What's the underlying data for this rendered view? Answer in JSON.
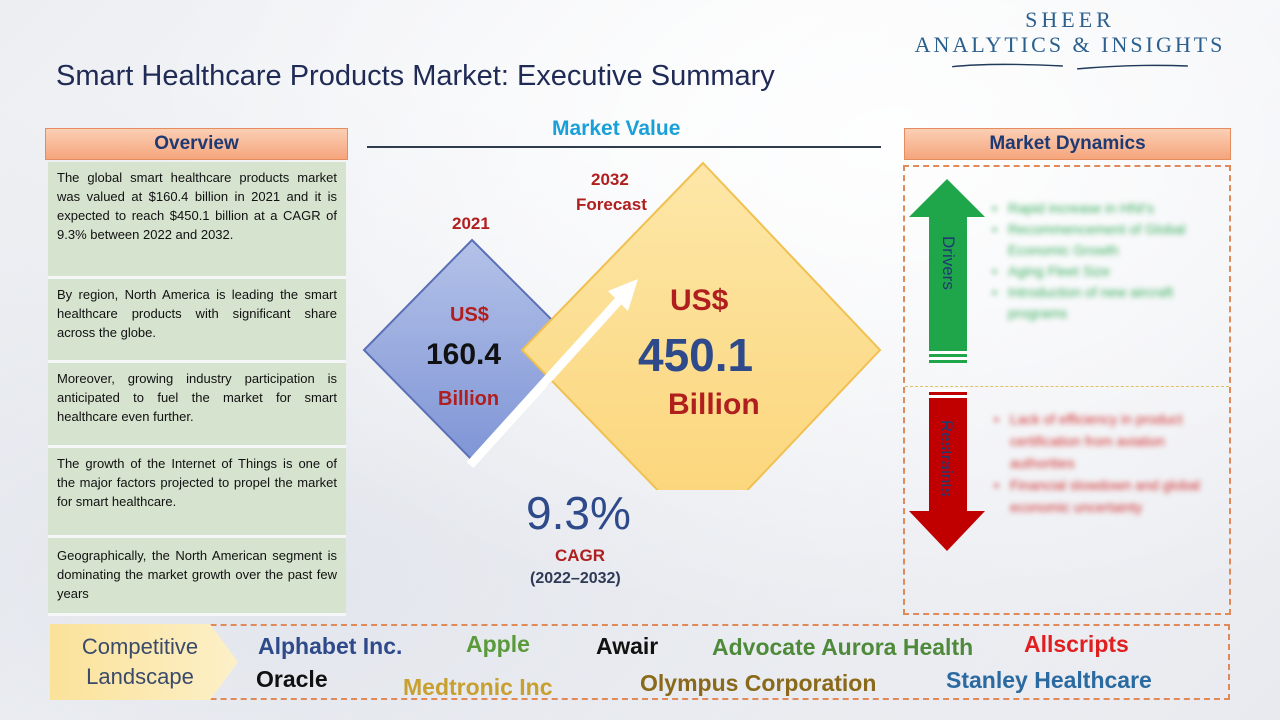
{
  "header": {
    "title": "Smart Healthcare Products Market: Executive Summary",
    "logo_line1": "SHEER",
    "logo_line2": "ANALYTICS & INSIGHTS"
  },
  "overview": {
    "heading": "Overview",
    "items": [
      "The global smart healthcare products market was valued at $160.4 billion in 2021 and it is expected to reach $450.1 billion at a CAGR of 9.3% between 2022 and 2032.",
      "By region, North America is leading the smart healthcare products with significant share across the globe.",
      "Moreover, growing industry participation is anticipated to fuel the market for smart healthcare even further.",
      "The growth of the Internet of Things is one of the major factors projected to propel the market for smart healthcare.",
      "Geographically, the North American segment is dominating the market growth over the past few years"
    ]
  },
  "market_value": {
    "heading": "Market Value",
    "base": {
      "year": "2021",
      "currency": "US$",
      "value": "160.4",
      "unit": "Billion"
    },
    "forecast": {
      "year": "2032",
      "year_label": "Forecast",
      "currency": "US$",
      "value": "450.1",
      "unit": "Billion"
    },
    "cagr": {
      "value": "9.3%",
      "label": "CAGR",
      "period": "(2022–2032)"
    }
  },
  "dynamics": {
    "heading": "Market Dynamics",
    "drivers_label": "Drivers",
    "restraints_label": "Restraints",
    "drivers": [
      "Rapid increase in HNI's",
      "Recommencement of Global Economic Growth",
      "Aging Fleet Size",
      "Introduction of new aircraft programs"
    ],
    "restraints": [
      "Lack of efficiency in product certification from aviation authorities",
      "Financial slowdown and global economic uncertainty"
    ]
  },
  "competitive": {
    "label_line1": "Competitive",
    "label_line2": "Landscape",
    "companies": [
      {
        "name": "Alphabet Inc.",
        "color": "#2e4a8a"
      },
      {
        "name": "Apple",
        "color": "#5a9a3a"
      },
      {
        "name": "Awair",
        "color": "#111111"
      },
      {
        "name": "Advocate Aurora Health",
        "color": "#4e8a3a"
      },
      {
        "name": "Allscripts",
        "color": "#e02020"
      },
      {
        "name": "Oracle",
        "color": "#111111"
      },
      {
        "name": "Medtronic Inc",
        "color": "#c8a030"
      },
      {
        "name": "Olympus Corporation",
        "color": "#8a6a1a"
      },
      {
        "name": "Stanley Healthcare",
        "color": "#2a6aa0"
      }
    ]
  },
  "colors": {
    "accent_blue": "#1aa0d8",
    "header_orange": "#f5a57c",
    "overview_green": "#d6e3cf",
    "driver_green": "#1fa64a",
    "restraint_red": "#c00000"
  }
}
